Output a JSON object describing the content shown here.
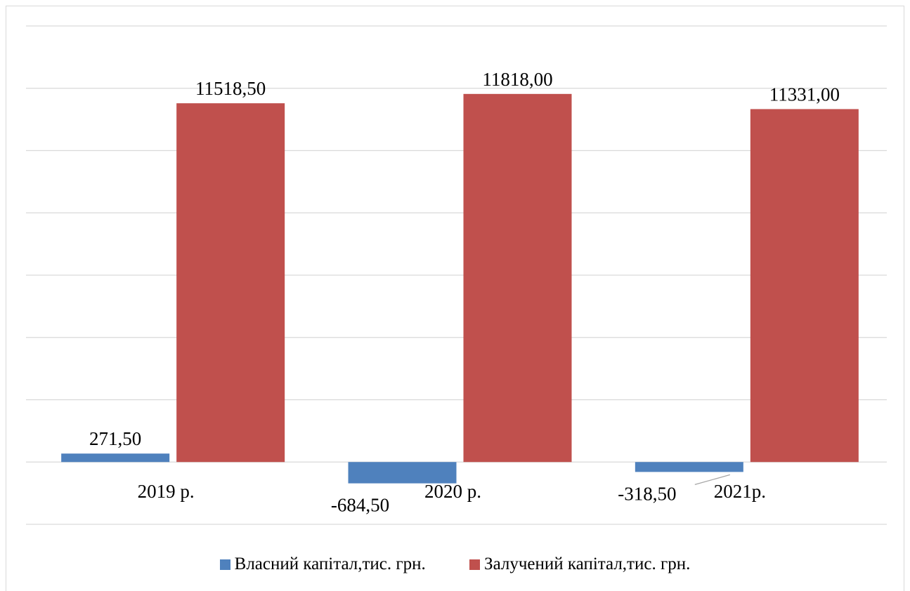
{
  "chart_data": {
    "type": "bar",
    "categories": [
      "2019 р.",
      "2020 р.",
      "2021р."
    ],
    "series": [
      {
        "name": "Власний капітал,тис. грн.",
        "color": "#4f81bd",
        "values": [
          271.5,
          -684.5,
          -318.5
        ],
        "labels": [
          "271,50",
          "-684,50",
          "-318,50"
        ]
      },
      {
        "name": "Залучений капітал,тис. грн.",
        "color": "#c0504d",
        "values": [
          11518.5,
          11818.0,
          11331.0
        ],
        "labels": [
          "11518,50",
          "11818,00",
          "11331,00"
        ]
      }
    ],
    "ylim": [
      -2000,
      14000
    ],
    "grid": true,
    "legend_position": "bottom"
  }
}
